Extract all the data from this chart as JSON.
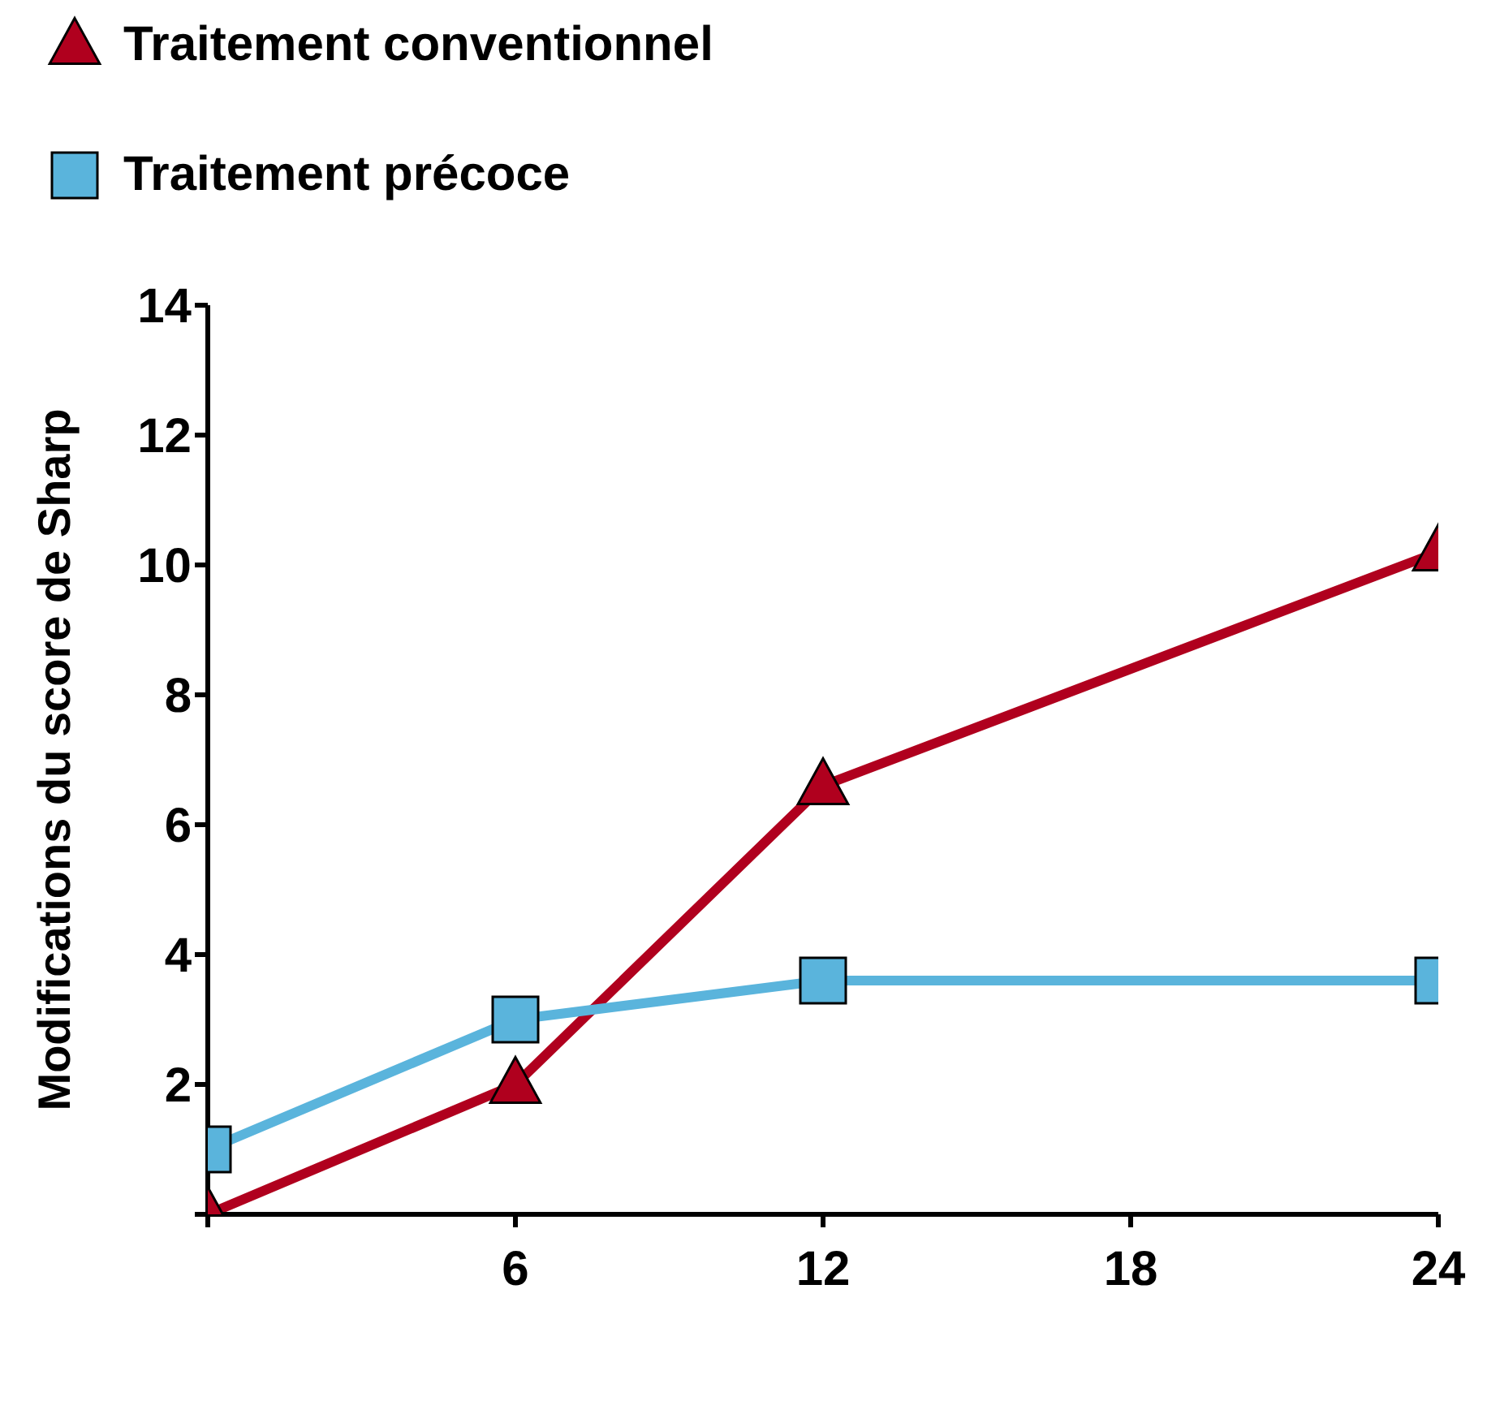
{
  "chart_data": {
    "type": "line",
    "ylabel": "Modifications du score de Sharp",
    "x": [
      0,
      6,
      12,
      24
    ],
    "series": [
      {
        "name": "Traitement conventionnel",
        "color": "#b0001e",
        "values": [
          0,
          2.0,
          6.6,
          10.2
        ],
        "marker": "triangle"
      },
      {
        "name": "Traitement précoce",
        "color": "#5ab4dc",
        "values": [
          1.0,
          3.0,
          3.6,
          3.6
        ],
        "marker": "square"
      }
    ],
    "xlim": [
      0,
      24
    ],
    "xticks": [
      {
        "value": 0,
        "label": null
      },
      6,
      12,
      18,
      24
    ],
    "ylim": [
      0,
      14
    ],
    "yticks": [
      {
        "value": 0,
        "label": null
      },
      2,
      4,
      6,
      8,
      10,
      12,
      14
    ],
    "grid": false,
    "legend": "top left",
    "line_style": "solid"
  }
}
